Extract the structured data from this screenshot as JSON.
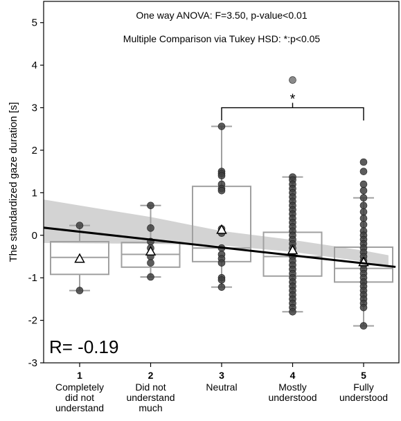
{
  "chart_data": {
    "type": "box",
    "ylabel": "The standardized gaze duration [s]",
    "xlabel": "",
    "ylim": [
      -3,
      5.5
    ],
    "yticks": [
      -3,
      -2,
      -1,
      0,
      1,
      2,
      3,
      4,
      5
    ],
    "categories": [
      {
        "num": "1",
        "lines": [
          "Completely",
          "did not",
          "understand"
        ]
      },
      {
        "num": "2",
        "lines": [
          "Did not",
          "understand",
          "much"
        ]
      },
      {
        "num": "3",
        "lines": [
          "Neutral"
        ]
      },
      {
        "num": "4",
        "lines": [
          "Mostly",
          "understood"
        ]
      },
      {
        "num": "5",
        "lines": [
          "Fully",
          "understood"
        ]
      }
    ],
    "annotations": {
      "anova": "One way ANOVA:  F=3.50, p-value<0.01",
      "tukey": "Multiple Comparison via Tukey HSD: *:p<0.05",
      "r_value": "R= -0.19",
      "significance_marker": "*",
      "significance_between": [
        "3",
        "5"
      ]
    },
    "boxes": [
      {
        "q1": -0.92,
        "median": -0.52,
        "q3": -0.15,
        "whisker_low": -1.3,
        "whisker_high": 0.23,
        "mean": -0.55
      },
      {
        "q1": -0.75,
        "median": -0.45,
        "q3": -0.17,
        "whisker_low": -0.98,
        "whisker_high": 0.7,
        "mean": -0.38
      },
      {
        "q1": -0.62,
        "median": -0.3,
        "q3": 1.15,
        "whisker_low": -1.22,
        "whisker_high": 2.56,
        "mean": 0.13
      },
      {
        "q1": -0.96,
        "median": -0.5,
        "q3": 0.07,
        "whisker_low": -1.8,
        "whisker_high": 1.37,
        "mean": -0.35
      },
      {
        "q1": -1.1,
        "median": -0.78,
        "q3": -0.28,
        "whisker_low": -2.13,
        "whisker_high": 0.88,
        "mean": -0.63
      }
    ],
    "points": [
      [
        0.23,
        -1.3
      ],
      [
        0.7,
        0.17,
        -0.15,
        -0.3,
        -0.5,
        -0.65,
        -0.98
      ],
      [
        2.56,
        1.5,
        1.45,
        1.4,
        1.2,
        1.1,
        1.05,
        0.15,
        0.05,
        -0.3,
        -0.45,
        -0.55,
        -0.65,
        -1.0,
        -1.05,
        -1.22
      ],
      [
        3.65,
        1.37,
        1.3,
        1.2,
        1.1,
        1.0,
        0.9,
        0.8,
        0.7,
        0.6,
        0.5,
        0.4,
        0.3,
        0.2,
        0.1,
        0.0,
        -0.1,
        -0.2,
        -0.3,
        -0.4,
        -0.5,
        -0.6,
        -0.7,
        -0.8,
        -0.9,
        -1.0,
        -1.1,
        -1.2,
        -1.3,
        -1.4,
        -1.5,
        -1.6,
        -1.7,
        -1.8
      ],
      [
        1.72,
        1.5,
        1.2,
        1.05,
        0.88,
        0.7,
        0.55,
        0.4,
        0.25,
        0.1,
        0.0,
        -0.1,
        -0.2,
        -0.3,
        -0.4,
        -0.5,
        -0.6,
        -0.7,
        -0.8,
        -0.9,
        -1.0,
        -1.1,
        -1.2,
        -1.3,
        -1.4,
        -1.5,
        -1.6,
        -1.7,
        -2.13
      ]
    ],
    "regression": {
      "intercept_at_x0": 0.27,
      "slope": -0.186
    },
    "confidence_band": {
      "x": [
        0.35,
        1,
        2,
        3,
        4,
        5,
        5.35
      ],
      "lower": [
        -0.18,
        -0.19,
        -0.2,
        -0.24,
        -0.39,
        -0.62,
        -0.72
      ],
      "upper": [
        0.88,
        0.7,
        0.43,
        0.1,
        -0.11,
        -0.36,
        -0.47
      ]
    },
    "colors": {
      "box": "#a0a0a0",
      "points": "#404040",
      "regression": "#000000",
      "band": "#d3d3d3"
    }
  }
}
